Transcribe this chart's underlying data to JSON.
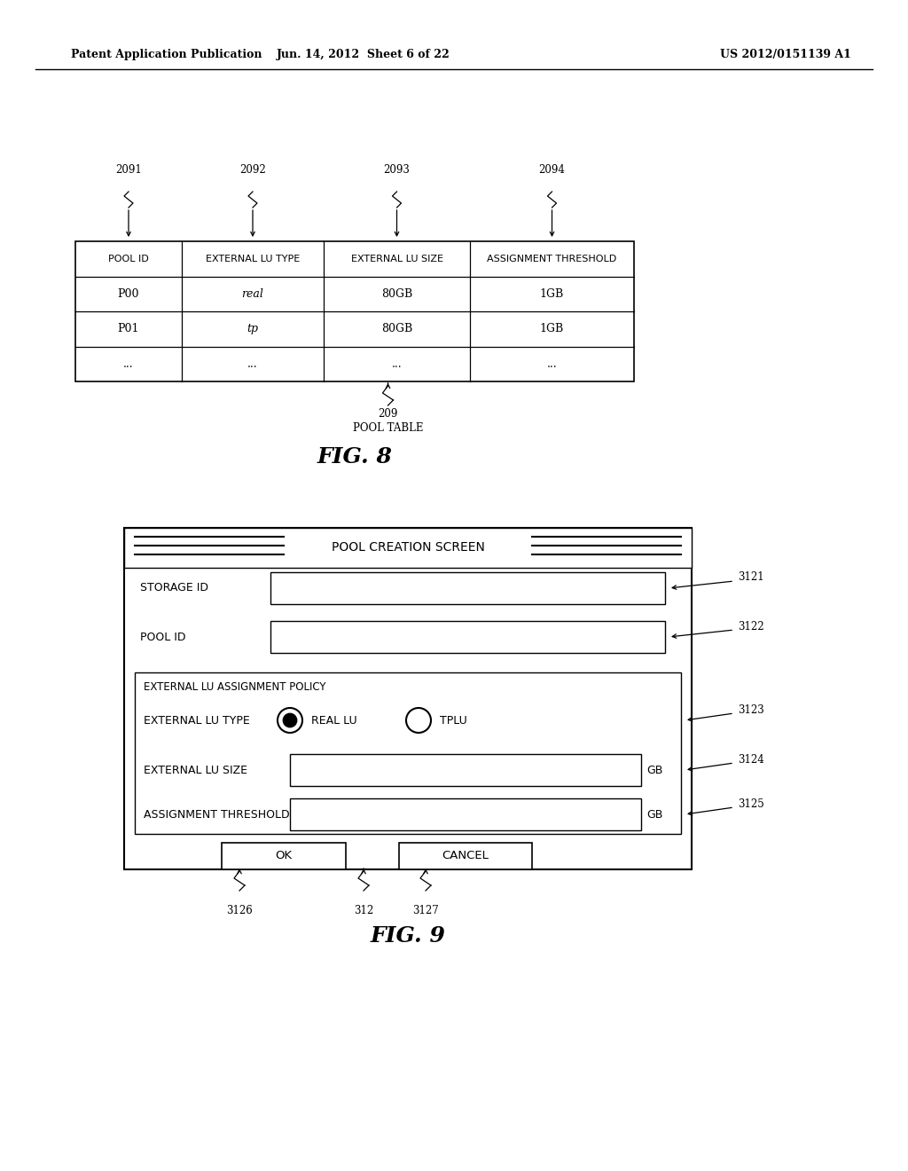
{
  "bg_color": "#ffffff",
  "header_text_left": "Patent Application Publication",
  "header_text_mid": "Jun. 14, 2012  Sheet 6 of 22",
  "header_text_right": "US 2012/0151139 A1",
  "fig8_label": "FIG. 8",
  "fig9_label": "FIG. 9",
  "table_headers": [
    "POOL ID",
    "EXTERNAL LU TYPE",
    "EXTERNAL LU SIZE",
    "ASSIGNMENT THRESHOLD"
  ],
  "table_rows": [
    [
      "P00",
      "real",
      "80GB",
      "1GB"
    ],
    [
      "P01",
      "tp",
      "80GB",
      "1GB"
    ],
    [
      "...",
      "...",
      "...",
      "..."
    ]
  ],
  "dialog_title": "POOL CREATION SCREEN",
  "dialog_storage_id_label": "STORAGE ID",
  "dialog_pool_id_label": "POOL ID",
  "dialog_ext_policy_label": "EXTERNAL LU ASSIGNMENT POLICY",
  "dialog_ext_type_label": "EXTERNAL LU TYPE",
  "dialog_real_lu_label": "REAL LU",
  "dialog_tplu_label": "TPLU",
  "dialog_ext_size_label": "EXTERNAL LU SIZE",
  "dialog_assign_thresh_label": "ASSIGNMENT THRESHOLD",
  "dialog_ok_label": "OK",
  "dialog_cancel_label": "CANCEL",
  "ref_2091": "2091",
  "ref_2092": "2092",
  "ref_2093": "2093",
  "ref_2094": "2094",
  "ref_209": "209",
  "pool_table_label": "POOL TABLE",
  "ref_3121": "3121",
  "ref_3122": "3122",
  "ref_3123": "3123",
  "ref_3124": "3124",
  "ref_3125": "3125",
  "ref_3126": "3126",
  "ref_312": "312",
  "ref_3127": "3127"
}
